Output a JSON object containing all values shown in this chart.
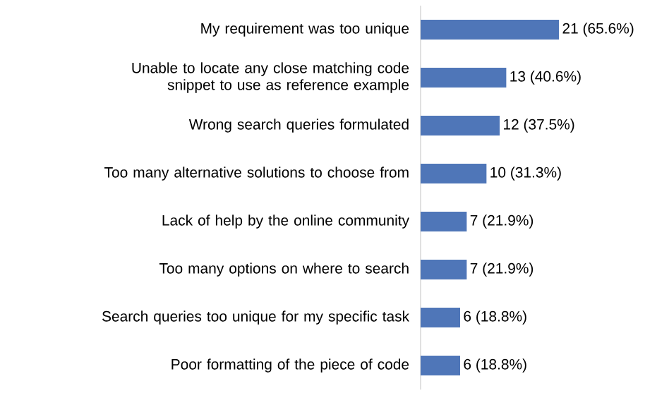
{
  "chart_data": {
    "type": "bar",
    "orientation": "horizontal",
    "color": "#4f76b8",
    "categories": [
      "My requirement was too unique",
      "Unable to locate any close matching code snippet to use as reference example",
      "Wrong search queries formulated",
      "Too many alternative solutions to choose from",
      "Lack of help by the online community",
      "Too many options on where to search",
      "Search queries too unique for my specific task",
      "Poor formatting of the piece of code"
    ],
    "values": [
      21,
      13,
      12,
      10,
      7,
      7,
      6,
      6
    ],
    "value_labels": [
      "21 (65.6%)",
      "13 (40.6%)",
      "12 (37.5%)",
      "10 (31.3%)",
      "7 (21.9%)",
      "7 (21.9%)",
      "6 (18.8%)",
      "6 (18.8%)"
    ]
  }
}
